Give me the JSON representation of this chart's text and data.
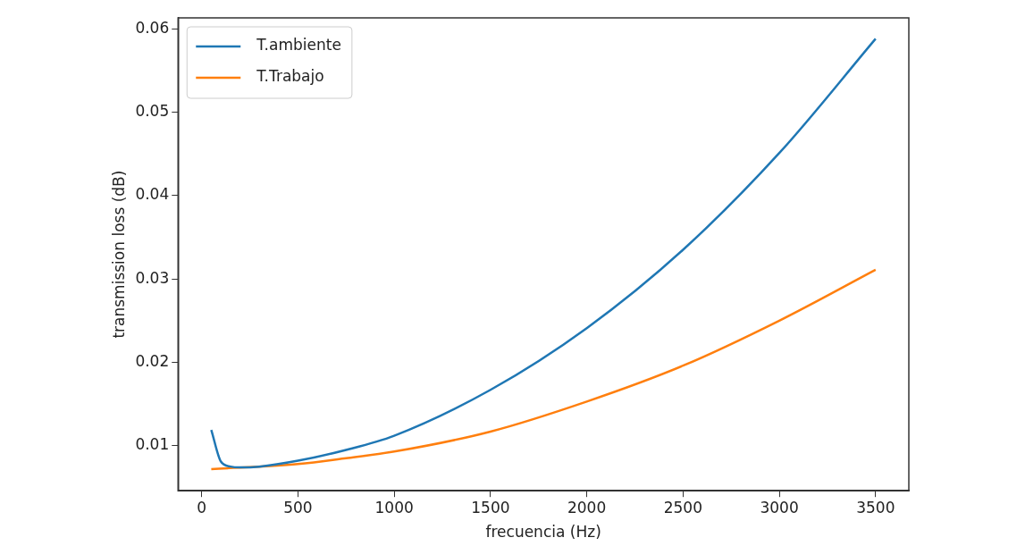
{
  "chart_data": {
    "type": "line",
    "xlabel": "frecuencia (Hz)",
    "ylabel": "transmission loss (dB)",
    "xlim": [
      -122.5,
      3672.5
    ],
    "xticks": [
      0,
      500,
      1000,
      1500,
      2000,
      2500,
      3000,
      3500
    ],
    "ylim": [
      0.0046,
      0.0613
    ],
    "yticks": [
      0.01,
      0.02,
      0.03,
      0.04,
      0.05,
      0.06
    ],
    "grid": false,
    "legend": "top left",
    "marker": "none",
    "line_style": "solid",
    "series": [
      {
        "name": "T.ambiente",
        "color": "#1f77b4",
        "x": [
          50,
          100,
          150,
          200,
          300,
          500,
          750,
          1000,
          1500,
          2000,
          2500,
          3000,
          3500
        ],
        "values": [
          0.0119,
          0.0081,
          0.0075,
          0.0074,
          0.0075,
          0.0082,
          0.0095,
          0.0112,
          0.0167,
          0.0241,
          0.0335,
          0.0451,
          0.0588
        ]
      },
      {
        "name": "T.Trabajo",
        "color": "#ff7f0e",
        "x": [
          50,
          500,
          750,
          1000,
          1500,
          2000,
          2500,
          3000,
          3500
        ],
        "values": [
          0.0072,
          0.0078,
          0.0085,
          0.0093,
          0.0117,
          0.0153,
          0.0196,
          0.025,
          0.0311
        ]
      }
    ]
  }
}
